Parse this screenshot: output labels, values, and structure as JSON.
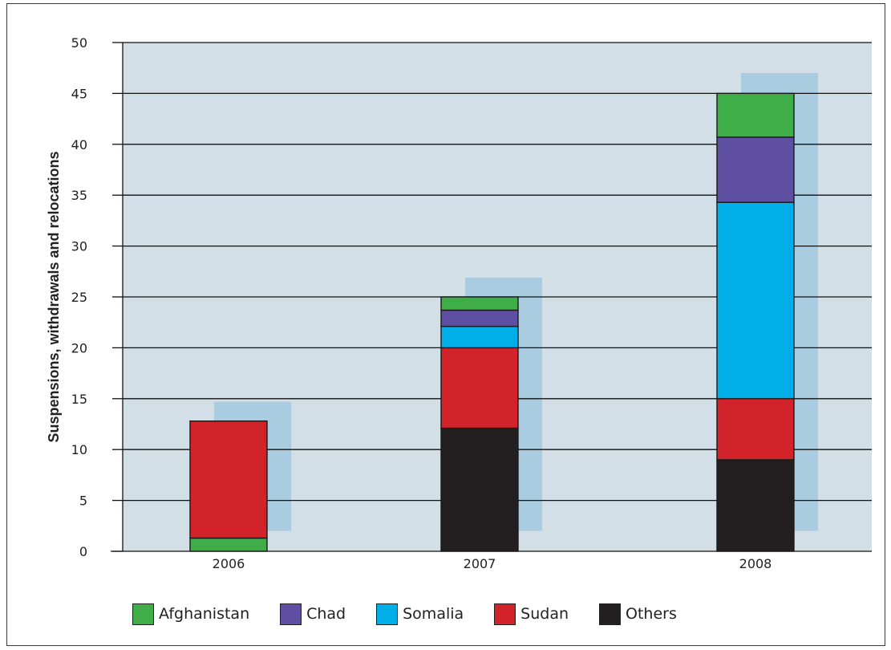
{
  "chart_data": {
    "type": "bar",
    "stacked": true,
    "categories": [
      "2006",
      "2007",
      "2008"
    ],
    "ylabel": "Suspensions, withdrawals and relocations",
    "xlabel": "",
    "ylim": [
      0,
      50
    ],
    "yticks": [
      "0",
      "5",
      "10",
      "15",
      "20",
      "25",
      "30",
      "35",
      "40",
      "45",
      "50"
    ],
    "grid": true,
    "legend_position": "bottom",
    "series": [
      {
        "name": "Others",
        "color": "#231f20",
        "values": [
          0,
          12.1,
          9.0
        ]
      },
      {
        "name": "Afghanistan",
        "color": "#3fae49",
        "values": [
          1.3,
          0,
          0
        ]
      },
      {
        "name": "Sudan",
        "color": "#d2232a",
        "values": [
          11.5,
          7.9,
          6.0
        ]
      },
      {
        "name": "Somalia",
        "color": "#00aee8",
        "values": [
          0,
          2.1,
          19.3
        ]
      },
      {
        "name": "Chad",
        "color": "#5e4fa2",
        "values": [
          0,
          1.6,
          6.4
        ]
      },
      {
        "name": "Afghanistan",
        "color": "#3fae49",
        "values": [
          0,
          1.3,
          4.3
        ]
      }
    ],
    "background_bars": {
      "color": "#a9cce1",
      "ranges": [
        [
          2,
          14.7
        ],
        [
          2,
          26.9
        ],
        [
          2,
          47
        ]
      ]
    },
    "legend": [
      {
        "label": "Afghanistan",
        "color": "#3fae49"
      },
      {
        "label": "Chad",
        "color": "#5e4fa2"
      },
      {
        "label": "Somalia",
        "color": "#00aee8"
      },
      {
        "label": "Sudan",
        "color": "#d2232a"
      },
      {
        "label": "Others",
        "color": "#231f20"
      }
    ],
    "plot_background": "#d3dfe7"
  }
}
